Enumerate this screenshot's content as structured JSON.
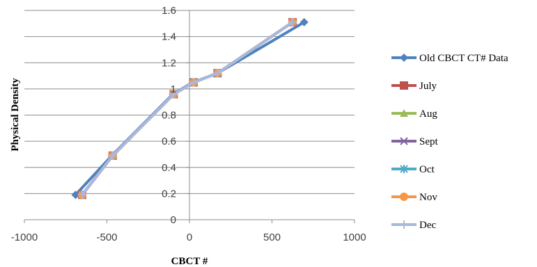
{
  "chart_data": {
    "type": "line",
    "title": "",
    "xlabel": "CBCT #",
    "ylabel": "Physical Density",
    "xlim": [
      -1000,
      1000
    ],
    "ylim": [
      0,
      1.6
    ],
    "xticks": [
      -1000,
      -500,
      0,
      500,
      1000
    ],
    "yticks": [
      0,
      0.2,
      0.4,
      0.6,
      0.8,
      1,
      1.2,
      1.4,
      1.6
    ],
    "x_tick_labels": [
      "-1000",
      "-500",
      "0",
      "500",
      "1000"
    ],
    "y_tick_labels": [
      "0",
      "0.2",
      "0.4",
      "0.6",
      "0.8",
      "1",
      "1.2",
      "1.4",
      "1.6"
    ],
    "grid": "horizontal major gridlines",
    "legend_position": "right",
    "series": [
      {
        "name": "Old  CBCT CT# Data",
        "color": "#4F81BD",
        "marker": "diamond",
        "x": [
          -690,
          -470,
          -100,
          20,
          170,
          695
        ],
        "y": [
          0.19,
          0.49,
          0.96,
          1.05,
          1.12,
          1.51
        ]
      },
      {
        "name": "July",
        "color": "#C0504D",
        "marker": "square",
        "x": [
          -650,
          -465,
          -95,
          25,
          170,
          625
        ],
        "y": [
          0.19,
          0.49,
          0.96,
          1.05,
          1.12,
          1.51
        ]
      },
      {
        "name": "Aug",
        "color": "#9BBB59",
        "marker": "triangle",
        "x": [
          -650,
          -465,
          -95,
          25,
          170,
          625
        ],
        "y": [
          0.19,
          0.49,
          0.96,
          1.05,
          1.12,
          1.51
        ]
      },
      {
        "name": "Sept",
        "color": "#8064A2",
        "marker": "x",
        "x": [
          -650,
          -465,
          -95,
          25,
          170,
          625
        ],
        "y": [
          0.19,
          0.49,
          0.96,
          1.05,
          1.12,
          1.51
        ]
      },
      {
        "name": "Oct",
        "color": "#4BACC6",
        "marker": "star",
        "x": [
          -650,
          -465,
          -95,
          25,
          170,
          625
        ],
        "y": [
          0.19,
          0.49,
          0.96,
          1.05,
          1.12,
          1.51
        ]
      },
      {
        "name": "Nov",
        "color": "#F79646",
        "marker": "circle",
        "x": [
          -650,
          -465,
          -95,
          25,
          170,
          625
        ],
        "y": [
          0.19,
          0.49,
          0.96,
          1.05,
          1.12,
          1.51
        ]
      },
      {
        "name": "Dec",
        "color": "#A9B8DE",
        "marker": "plus",
        "x": [
          -650,
          -465,
          -95,
          25,
          170,
          625
        ],
        "y": [
          0.19,
          0.49,
          0.96,
          1.05,
          1.12,
          1.51
        ]
      }
    ]
  }
}
